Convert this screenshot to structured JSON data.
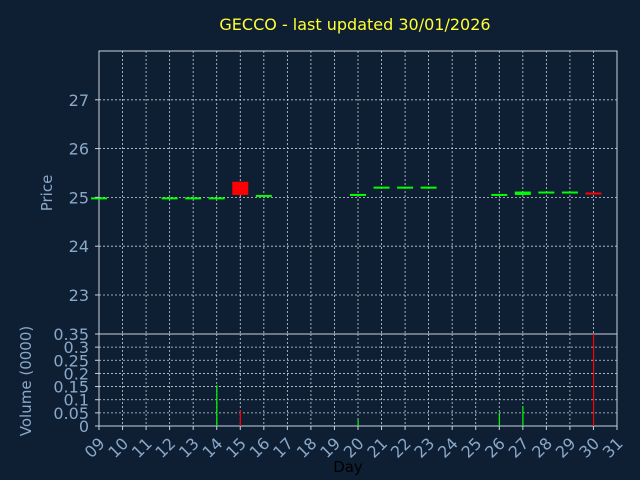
{
  "title": "GECCO - last updated 30/01/2026",
  "chart_data": [
    {
      "type": "candlestick",
      "ylabel": "Price",
      "ylim": [
        22.2,
        28.0
      ],
      "yticks": [
        "23",
        "24",
        "25",
        "26",
        "27"
      ],
      "grid": true,
      "up_color": "#00ff00",
      "down_color": "#ff0000",
      "candles": [
        {
          "day": 9,
          "open": 24.98,
          "close": 25.0,
          "dir": "up"
        },
        {
          "day": 12,
          "open": 24.98,
          "close": 25.0,
          "dir": "up"
        },
        {
          "day": 13,
          "open": 24.98,
          "close": 25.0,
          "dir": "up"
        },
        {
          "day": 14,
          "open": 24.98,
          "close": 25.0,
          "dir": "up"
        },
        {
          "day": 15,
          "open": 25.32,
          "close": 25.05,
          "dir": "down"
        },
        {
          "day": 16,
          "open": 25.03,
          "close": 25.05,
          "dir": "up"
        },
        {
          "day": 20,
          "open": 25.05,
          "close": 25.07,
          "dir": "up"
        },
        {
          "day": 21,
          "open": 25.2,
          "close": 25.22,
          "dir": "up"
        },
        {
          "day": 22,
          "open": 25.2,
          "close": 25.22,
          "dir": "up"
        },
        {
          "day": 23,
          "open": 25.2,
          "close": 25.22,
          "dir": "up"
        },
        {
          "day": 26,
          "open": 25.05,
          "close": 25.07,
          "dir": "up"
        },
        {
          "day": 27,
          "open": 25.05,
          "close": 25.12,
          "dir": "up"
        },
        {
          "day": 28,
          "open": 25.1,
          "close": 25.12,
          "dir": "up"
        },
        {
          "day": 29,
          "open": 25.1,
          "close": 25.12,
          "dir": "up"
        },
        {
          "day": 30,
          "open": 25.1,
          "close": 25.08,
          "dir": "down"
        }
      ]
    },
    {
      "type": "bar",
      "ylabel": "Volume (0000)",
      "xlabel": "Day",
      "ylim": [
        0,
        0.35
      ],
      "yticks": [
        "0",
        "0.05",
        "0.1",
        "0.15",
        "0.2",
        "0.25",
        "0.3",
        "0.35"
      ],
      "x_ticks": [
        "09",
        "10",
        "11",
        "12",
        "13",
        "14",
        "15",
        "16",
        "17",
        "18",
        "19",
        "20",
        "21",
        "22",
        "23",
        "24",
        "25",
        "26",
        "27",
        "28",
        "29",
        "30",
        "31"
      ],
      "grid": true,
      "bars": [
        {
          "day": 14,
          "value": 0.155,
          "dir": "up"
        },
        {
          "day": 15,
          "value": 0.06,
          "dir": "down"
        },
        {
          "day": 20,
          "value": 0.025,
          "dir": "up"
        },
        {
          "day": 26,
          "value": 0.05,
          "dir": "up"
        },
        {
          "day": 27,
          "value": 0.075,
          "dir": "up"
        },
        {
          "day": 30,
          "value": 0.35,
          "dir": "down"
        }
      ]
    }
  ]
}
